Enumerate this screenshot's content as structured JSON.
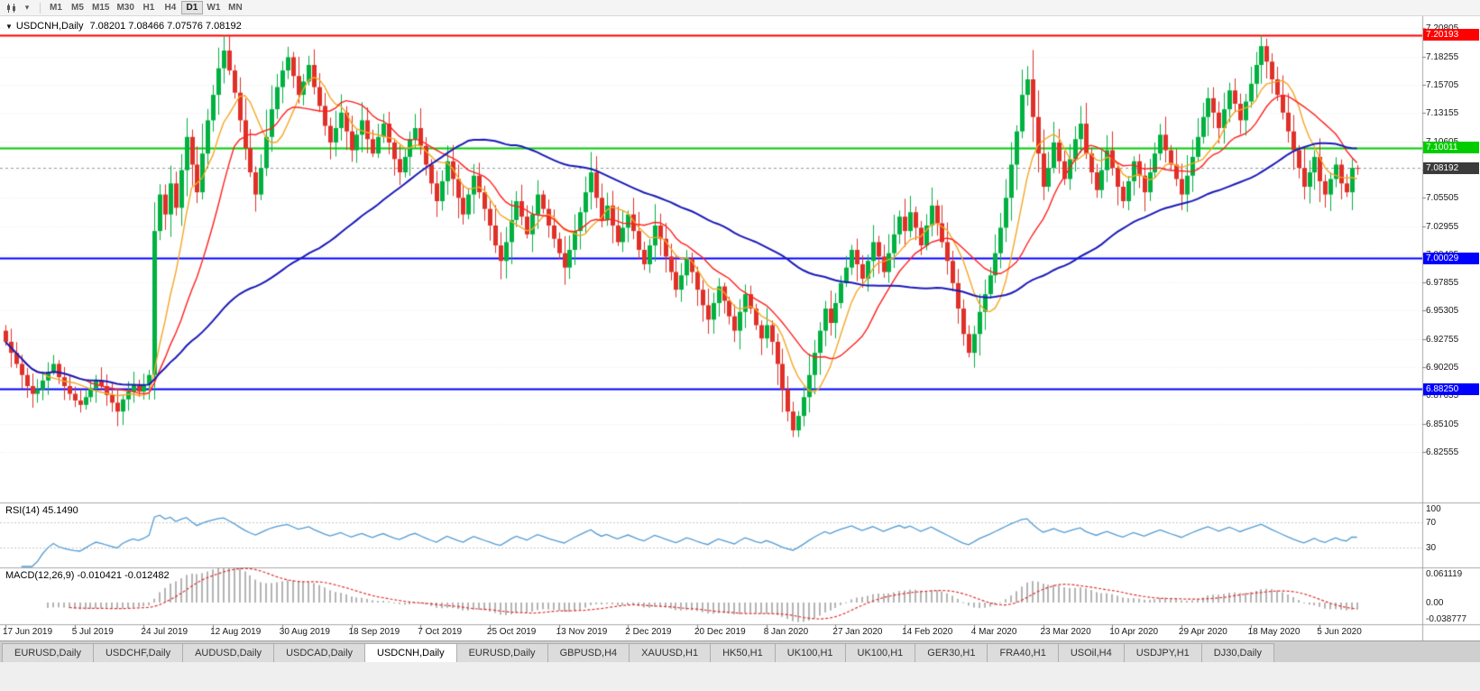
{
  "toolbar": {
    "timeframes": [
      {
        "label": "M1",
        "active": false
      },
      {
        "label": "M5",
        "active": false
      },
      {
        "label": "M15",
        "active": false
      },
      {
        "label": "M30",
        "active": false
      },
      {
        "label": "H1",
        "active": false
      },
      {
        "label": "H4",
        "active": false
      },
      {
        "label": "D1",
        "active": true
      },
      {
        "label": "W1",
        "active": false
      },
      {
        "label": "MN",
        "active": false
      }
    ]
  },
  "chart": {
    "symbol_title": "USDCNH,Daily",
    "ohlc_line": "7.08201 7.08466 7.07576 7.08192"
  },
  "rsi_panel": {
    "label": "RSI(14) 45.1490",
    "value": 45.149,
    "levels": [
      "100",
      "70",
      "30"
    ],
    "level_values": [
      100,
      70,
      30
    ],
    "color": "#539bd2"
  },
  "macd_panel": {
    "label": "MACD(12,26,9) -0.010421 -0.012482",
    "values": [
      -0.010421,
      -0.012482
    ],
    "axis_labels": [
      "0.061119",
      "0.00",
      "-0.038777"
    ],
    "max": 0.061119,
    "min": -0.038777,
    "hist_color": "#b4b4b4",
    "signal_color": "#e03030"
  },
  "chart_data": {
    "type": "candlestick",
    "symbol": "USDCNH",
    "timeframe": "Daily",
    "last_candle": {
      "open": 7.08201,
      "high": 7.08466,
      "low": 7.07576,
      "close": 7.08192
    },
    "current_price": "7.08192",
    "current_price_color": "#3b3b3b",
    "first_open": 6.935,
    "price_max": 7.219,
    "price_min": 6.7807,
    "up_color": "#00b140",
    "down_color": "#e03028",
    "y_ticks": [
      "7.20805",
      "7.18255",
      "7.15705",
      "7.13155",
      "7.10605",
      "7.08055",
      "7.05505",
      "7.02955",
      "7.00405",
      "6.97855",
      "6.95305",
      "6.92755",
      "6.90205",
      "6.87655",
      "6.85105",
      "6.82555"
    ],
    "x_labels": [
      "17 Jun 2019",
      "5 Jul 2019",
      "24 Jul 2019",
      "12 Aug 2019",
      "30 Aug 2019",
      "18 Sep 2019",
      "7 Oct 2019",
      "25 Oct 2019",
      "13 Nov 2019",
      "2 Dec 2019",
      "20 Dec 2019",
      "8 Jan 2020",
      "27 Jan 2020",
      "14 Feb 2020",
      "4 Mar 2020",
      "23 Mar 2020",
      "10 Apr 2020",
      "29 Apr 2020",
      "18 May 2020",
      "5 Jun 2020"
    ],
    "candles_per_label": 13,
    "hlines": [
      {
        "price": 7.20193,
        "label": "7.20193",
        "color": "#ff0000",
        "width": 2
      },
      {
        "price": 7.10011,
        "label": "7.10011",
        "color": "#00cc00",
        "width": 2
      },
      {
        "price": 7.00029,
        "label": "7.00029",
        "color": "#0000ff",
        "width": 2
      },
      {
        "price": 6.8825,
        "label": "6.88250",
        "color": "#0000ff",
        "width": 2
      }
    ],
    "moving_averages": [
      {
        "period": 8,
        "color": "#f5a623",
        "width": 1.4
      },
      {
        "period": 16,
        "color": "#ff1e1e",
        "width": 1.4
      },
      {
        "period": 60,
        "color": "#1a1ab8",
        "width": 2
      }
    ],
    "closes": [
      6.925,
      6.915,
      6.905,
      6.895,
      6.885,
      6.878,
      6.882,
      6.89,
      6.898,
      6.905,
      6.893,
      6.885,
      6.878,
      6.872,
      6.868,
      6.875,
      6.883,
      6.89,
      6.885,
      6.877,
      6.87,
      6.862,
      6.873,
      6.88,
      6.886,
      6.88,
      6.886,
      6.895,
      7.025,
      7.058,
      7.04,
      7.068,
      7.046,
      7.08,
      7.11,
      7.085,
      7.06,
      7.095,
      7.125,
      7.148,
      7.172,
      7.188,
      7.17,
      7.15,
      7.125,
      7.1,
      7.078,
      7.058,
      7.082,
      7.11,
      7.135,
      7.155,
      7.17,
      7.182,
      7.165,
      7.148,
      7.16,
      7.175,
      7.155,
      7.138,
      7.12,
      7.105,
      7.118,
      7.132,
      7.115,
      7.098,
      7.112,
      7.125,
      7.108,
      7.095,
      7.11,
      7.122,
      7.105,
      7.09,
      7.078,
      7.092,
      7.108,
      7.118,
      7.102,
      7.085,
      7.068,
      7.052,
      7.07,
      7.088,
      7.072,
      7.055,
      7.04,
      7.058,
      7.075,
      7.06,
      7.045,
      7.03,
      7.012,
      6.998,
      7.015,
      7.035,
      7.052,
      7.038,
      7.022,
      7.04,
      7.058,
      7.045,
      7.03,
      7.018,
      7.005,
      6.992,
      7.008,
      7.025,
      7.042,
      7.06,
      7.078,
      7.055,
      7.035,
      7.048,
      7.03,
      7.015,
      7.028,
      7.04,
      7.025,
      7.008,
      6.995,
      7.012,
      7.03,
      7.018,
      7.002,
      6.988,
      6.972,
      6.985,
      7.0,
      6.988,
      6.972,
      6.958,
      6.945,
      6.96,
      6.975,
      6.962,
      6.948,
      6.935,
      6.952,
      6.968,
      6.955,
      6.94,
      6.928,
      6.94,
      6.925,
      6.905,
      6.882,
      6.862,
      6.845,
      6.858,
      6.875,
      6.895,
      6.915,
      6.935,
      6.955,
      6.942,
      6.96,
      6.978,
      6.992,
      7.008,
      6.995,
      6.982,
      6.998,
      7.015,
      7.002,
      6.988,
      7.005,
      7.022,
      7.038,
      7.025,
      7.042,
      7.028,
      7.012,
      7.03,
      7.048,
      7.032,
      7.015,
      6.998,
      6.978,
      6.955,
      6.932,
      6.915,
      6.932,
      6.952,
      6.968,
      6.985,
      7.005,
      7.028,
      7.055,
      7.085,
      7.115,
      7.148,
      7.162,
      7.128,
      7.095,
      7.065,
      7.082,
      7.105,
      7.088,
      7.072,
      7.09,
      7.108,
      7.122,
      7.095,
      7.078,
      7.062,
      7.08,
      7.098,
      7.082,
      7.065,
      7.052,
      7.07,
      7.088,
      7.075,
      7.06,
      7.078,
      7.095,
      7.112,
      7.098,
      7.085,
      7.072,
      7.058,
      7.075,
      7.092,
      7.11,
      7.128,
      7.145,
      7.132,
      7.118,
      7.135,
      7.152,
      7.14,
      7.125,
      7.142,
      7.158,
      7.175,
      7.192,
      7.178,
      7.162,
      7.148,
      7.132,
      7.115,
      7.098,
      7.082,
      7.065,
      7.078,
      7.092,
      7.07,
      7.058,
      7.072,
      7.085,
      7.068,
      7.06,
      7.082,
      7.08192
    ]
  },
  "tabs": [
    {
      "label": "EURUSD,Daily",
      "active": false
    },
    {
      "label": "USDCHF,Daily",
      "active": false
    },
    {
      "label": "AUDUSD,Daily",
      "active": false
    },
    {
      "label": "USDCAD,Daily",
      "active": false
    },
    {
      "label": "USDCNH,Daily",
      "active": true
    },
    {
      "label": "EURUSD,Daily",
      "active": false
    },
    {
      "label": "GBPUSD,H4",
      "active": false
    },
    {
      "label": "XAUUSD,H1",
      "active": false
    },
    {
      "label": "HK50,H1",
      "active": false
    },
    {
      "label": "UK100,H1",
      "active": false
    },
    {
      "label": "UK100,H1",
      "active": false
    },
    {
      "label": "GER30,H1",
      "active": false
    },
    {
      "label": "FRA40,H1",
      "active": false
    },
    {
      "label": "USOil,H4",
      "active": false
    },
    {
      "label": "USDJPY,H1",
      "active": false
    },
    {
      "label": "DJ30,Daily",
      "active": false
    }
  ]
}
